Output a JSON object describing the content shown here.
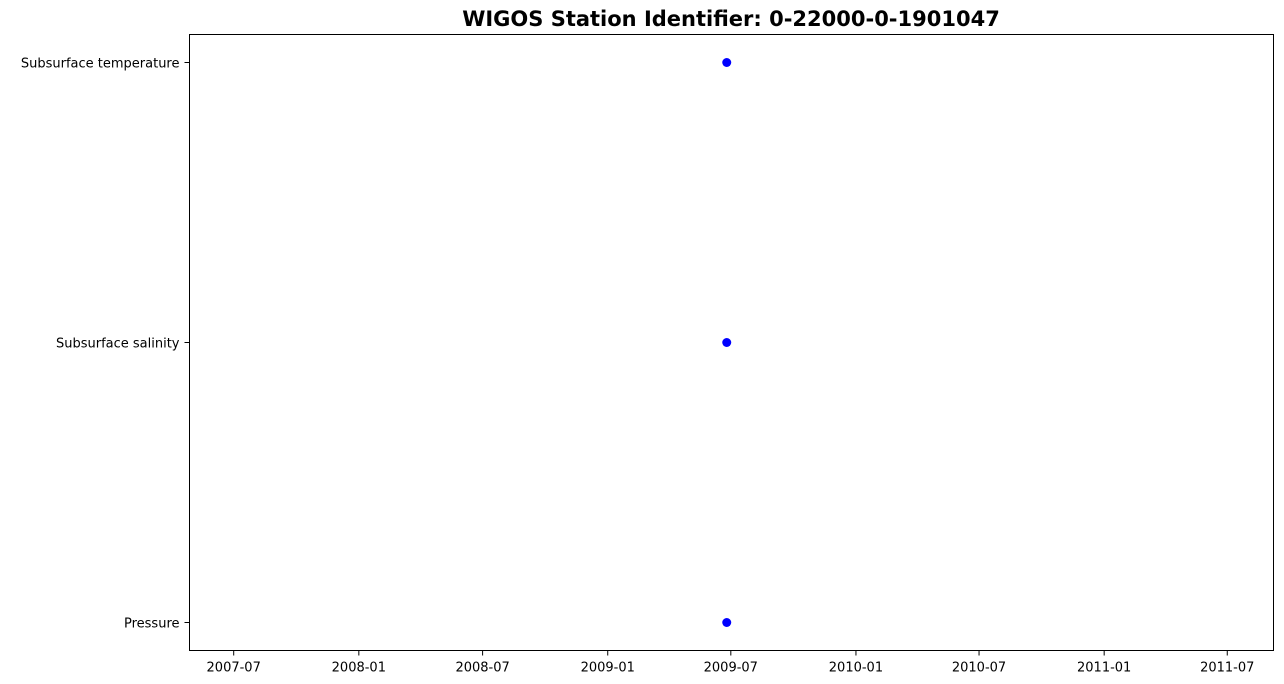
{
  "chart_data": {
    "type": "scatter",
    "title": "WIGOS Station Identifier: 0-22000-0-1901047",
    "xlabel": "",
    "ylabel": "",
    "x_axis": {
      "kind": "date",
      "range": [
        "2007-04-27",
        "2011-09-07"
      ],
      "ticks": [
        "2007-07",
        "2008-01",
        "2008-07",
        "2009-01",
        "2009-07",
        "2010-01",
        "2010-07",
        "2011-01",
        "2011-07"
      ]
    },
    "y_axis": {
      "kind": "category",
      "categories": [
        "Pressure",
        "Subsurface salinity",
        "Subsurface temperature"
      ]
    },
    "grid": false,
    "marker_color": "#0000ff",
    "series": [
      {
        "points": [
          {
            "x": "2009-06-25",
            "y": "Subsurface temperature"
          },
          {
            "x": "2009-06-25",
            "y": "Subsurface salinity"
          },
          {
            "x": "2009-06-25",
            "y": "Pressure"
          }
        ]
      }
    ]
  }
}
